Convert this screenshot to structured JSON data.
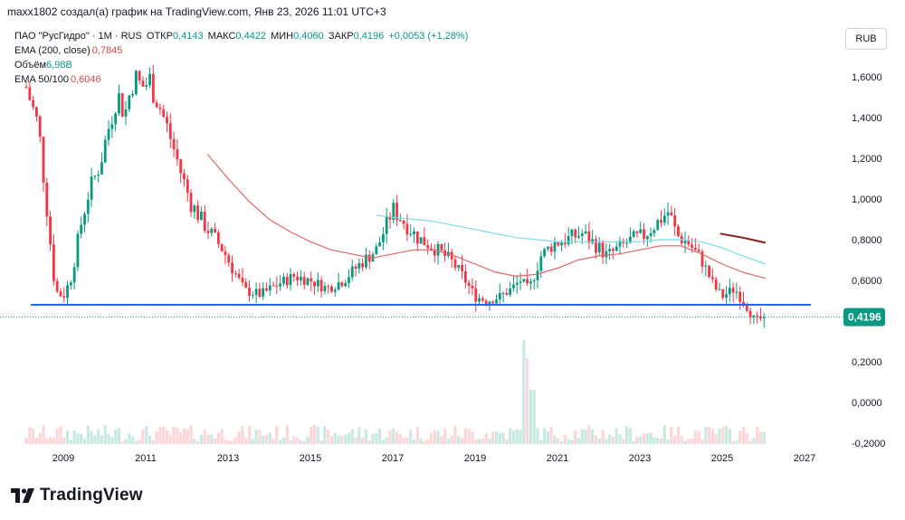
{
  "header": {
    "text": "maxx1802 создал(а) график на TradingView.com, Янв 23, 2026 11:01 UTC+3"
  },
  "currency_label": "RUB",
  "brand": {
    "name": "TradingView",
    "icon": "tradingview-logo-icon"
  },
  "legend": {
    "symbol": "ПАО \"РусГидро\" · 1М · RUS",
    "open_label": "ОТКР",
    "open": "0,4143",
    "high_label": "МАКС",
    "high": "0,4422",
    "low_label": "МИН",
    "low": "0,4060",
    "close_label": "ЗАКР",
    "close": "0,4196",
    "change": "+0,0053 (+1,28%)",
    "ema200_label": "EMA (200, close)",
    "ema200_value": "0,7845",
    "volume_label": "Объём",
    "volume_value": "6,98B",
    "ema50_label": "EMA 50/100",
    "ema50_value": "0,6046"
  },
  "colors": {
    "up": "#089981",
    "down": "#f23645",
    "ema_red": "#e06666",
    "ema_cyan": "#7ddbe8",
    "ema_dark": "#8b1a1a",
    "hline": "#2962ff",
    "price_label_bg": "#089981"
  },
  "chart_data": {
    "type": "candlestick",
    "title": "ПАО \"РусГидро\" · 1М · RUS",
    "xlabel": "",
    "ylabel": "RUB",
    "x_ticks": [
      "2009",
      "2011",
      "2013",
      "2015",
      "2017",
      "2019",
      "2021",
      "2023",
      "2025",
      "2027"
    ],
    "y_ticks": [
      "1,6000",
      "1,4000",
      "1,2000",
      "1,0000",
      "0,8000",
      "0,6000",
      "0,2000",
      "0,0000",
      "-0,2000"
    ],
    "ylim": [
      -0.2,
      1.75
    ],
    "xlim": [
      2008.0,
      2027.6
    ],
    "last_price": 0.4196,
    "last_price_label": "0,4196",
    "support_level": 0.48,
    "price_path": [
      [
        2008.1,
        1.55
      ],
      [
        2008.4,
        1.35
      ],
      [
        2008.6,
        0.95
      ],
      [
        2008.8,
        0.55
      ],
      [
        2009.0,
        0.52
      ],
      [
        2009.2,
        0.62
      ],
      [
        2009.4,
        0.85
      ],
      [
        2009.6,
        1.02
      ],
      [
        2009.9,
        1.18
      ],
      [
        2010.1,
        1.35
      ],
      [
        2010.3,
        1.52
      ],
      [
        2010.5,
        1.42
      ],
      [
        2010.7,
        1.6
      ],
      [
        2010.9,
        1.55
      ],
      [
        2011.1,
        1.58
      ],
      [
        2011.3,
        1.48
      ],
      [
        2011.6,
        1.3
      ],
      [
        2011.9,
        1.1
      ],
      [
        2012.1,
        0.98
      ],
      [
        2012.4,
        0.88
      ],
      [
        2012.7,
        0.8
      ],
      [
        2012.9,
        0.74
      ],
      [
        2013.1,
        0.66
      ],
      [
        2013.4,
        0.55
      ],
      [
        2013.8,
        0.53
      ],
      [
        2014.2,
        0.58
      ],
      [
        2014.6,
        0.62
      ],
      [
        2015.0,
        0.6
      ],
      [
        2015.4,
        0.56
      ],
      [
        2015.8,
        0.6
      ],
      [
        2016.2,
        0.68
      ],
      [
        2016.6,
        0.75
      ],
      [
        2017.0,
        0.95
      ],
      [
        2017.3,
        0.88
      ],
      [
        2017.6,
        0.81
      ],
      [
        2018.0,
        0.76
      ],
      [
        2018.4,
        0.7
      ],
      [
        2018.7,
        0.62
      ],
      [
        2019.0,
        0.52
      ],
      [
        2019.3,
        0.5
      ],
      [
        2019.6,
        0.52
      ],
      [
        2019.9,
        0.56
      ],
      [
        2020.1,
        0.6
      ],
      [
        2020.3,
        0.55
      ],
      [
        2020.6,
        0.72
      ],
      [
        2020.9,
        0.78
      ],
      [
        2021.2,
        0.8
      ],
      [
        2021.6,
        0.83
      ],
      [
        2021.9,
        0.78
      ],
      [
        2022.2,
        0.72
      ],
      [
        2022.5,
        0.76
      ],
      [
        2022.8,
        0.8
      ],
      [
        2023.1,
        0.82
      ],
      [
        2023.4,
        0.88
      ],
      [
        2023.7,
        0.94
      ],
      [
        2023.9,
        0.82
      ],
      [
        2024.2,
        0.78
      ],
      [
        2024.5,
        0.7
      ],
      [
        2024.8,
        0.57
      ],
      [
        2025.0,
        0.52
      ],
      [
        2025.3,
        0.56
      ],
      [
        2025.6,
        0.47
      ],
      [
        2025.8,
        0.4
      ],
      [
        2026.05,
        0.42
      ]
    ],
    "series": [
      {
        "name": "EMA 50",
        "color": "#e06666",
        "points": [
          [
            2012.5,
            1.22
          ],
          [
            2013.0,
            1.1
          ],
          [
            2013.5,
            0.99
          ],
          [
            2014.0,
            0.9
          ],
          [
            2014.5,
            0.84
          ],
          [
            2015.0,
            0.79
          ],
          [
            2015.5,
            0.75
          ],
          [
            2016.0,
            0.73
          ],
          [
            2016.5,
            0.71
          ],
          [
            2017.0,
            0.73
          ],
          [
            2017.5,
            0.75
          ],
          [
            2018.0,
            0.75
          ],
          [
            2018.5,
            0.72
          ],
          [
            2019.0,
            0.68
          ],
          [
            2019.5,
            0.64
          ],
          [
            2020.0,
            0.62
          ],
          [
            2020.5,
            0.63
          ],
          [
            2021.0,
            0.66
          ],
          [
            2021.5,
            0.7
          ],
          [
            2022.0,
            0.72
          ],
          [
            2022.5,
            0.73
          ],
          [
            2023.0,
            0.75
          ],
          [
            2023.5,
            0.77
          ],
          [
            2024.0,
            0.77
          ],
          [
            2024.5,
            0.73
          ],
          [
            2025.0,
            0.68
          ],
          [
            2025.5,
            0.64
          ],
          [
            2026.05,
            0.61
          ]
        ]
      },
      {
        "name": "EMA 100",
        "color": "#7ddbe8",
        "points": [
          [
            2016.6,
            0.92
          ],
          [
            2017.0,
            0.91
          ],
          [
            2017.5,
            0.9
          ],
          [
            2018.0,
            0.89
          ],
          [
            2018.5,
            0.87
          ],
          [
            2019.0,
            0.85
          ],
          [
            2019.5,
            0.83
          ],
          [
            2020.0,
            0.81
          ],
          [
            2020.5,
            0.8
          ],
          [
            2021.0,
            0.79
          ],
          [
            2021.5,
            0.79
          ],
          [
            2022.0,
            0.79
          ],
          [
            2022.5,
            0.79
          ],
          [
            2023.0,
            0.79
          ],
          [
            2023.5,
            0.8
          ],
          [
            2024.0,
            0.8
          ],
          [
            2024.5,
            0.79
          ],
          [
            2025.0,
            0.76
          ],
          [
            2025.5,
            0.72
          ],
          [
            2026.05,
            0.68
          ]
        ]
      },
      {
        "name": "EMA 200",
        "color": "#8b1a1a",
        "points": [
          [
            2024.95,
            0.83
          ],
          [
            2025.5,
            0.81
          ],
          [
            2026.05,
            0.785
          ]
        ]
      }
    ]
  }
}
